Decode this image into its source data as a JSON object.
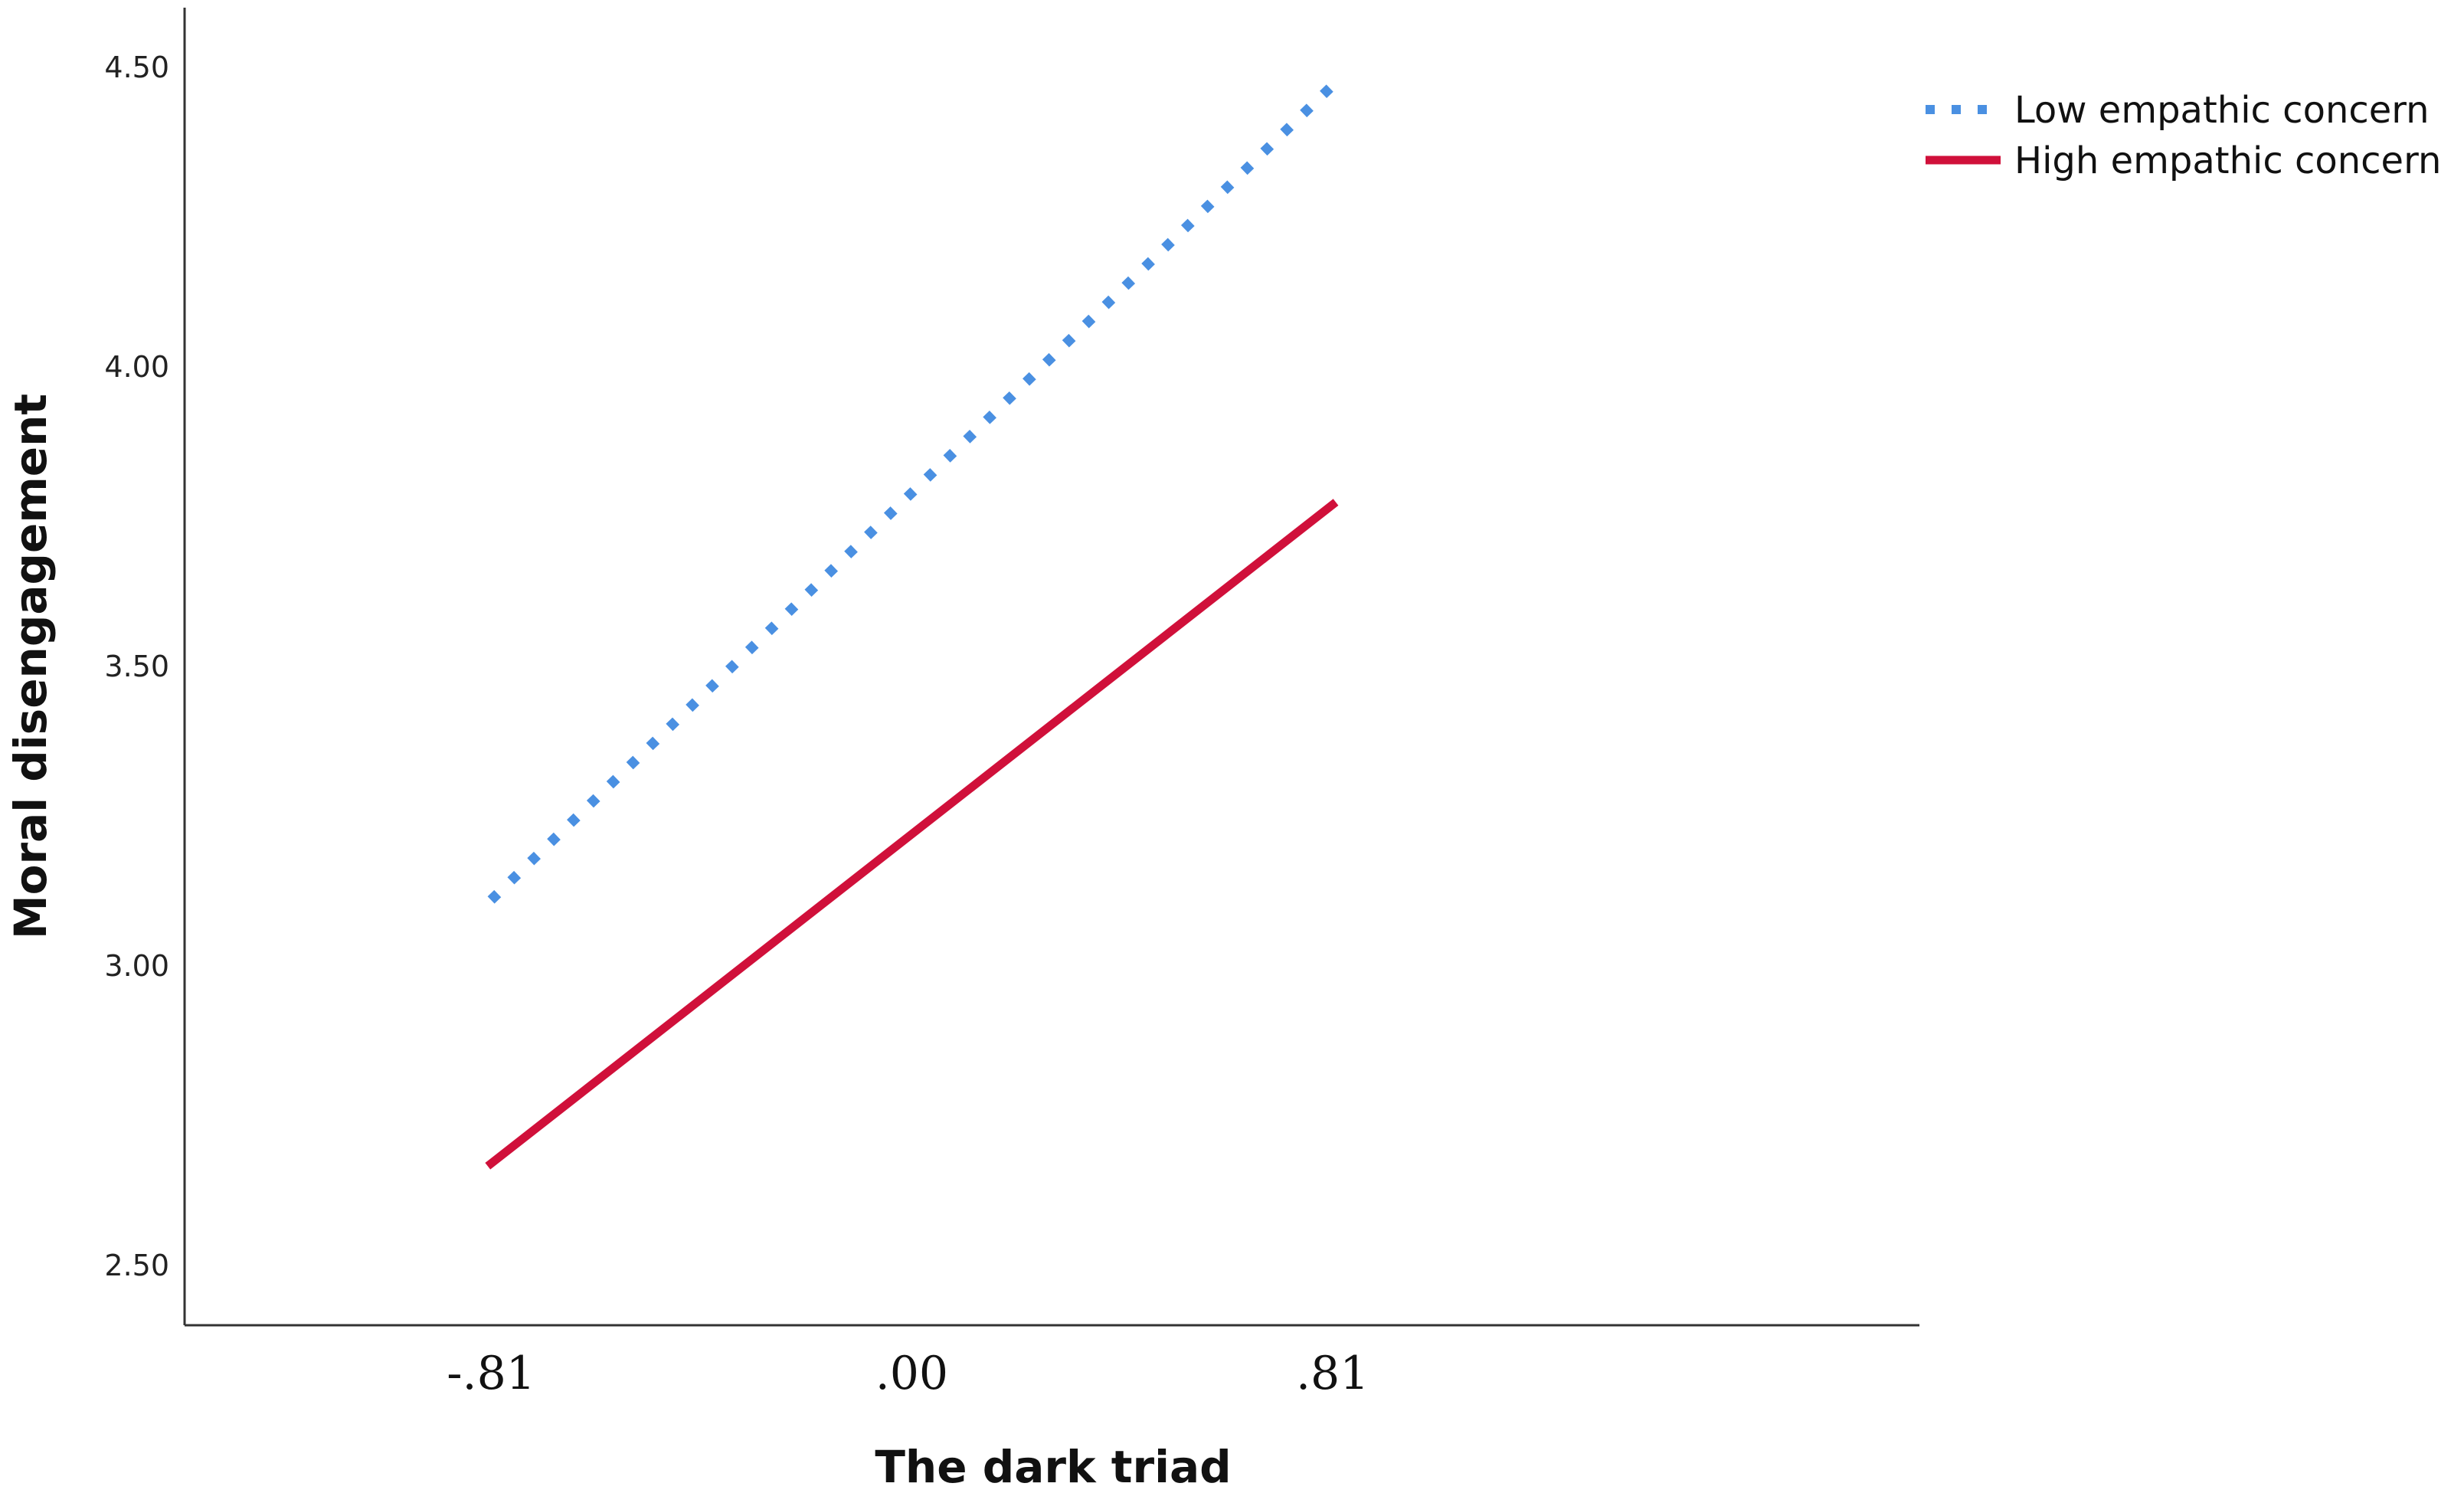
{
  "chart_data": {
    "type": "line",
    "title": "",
    "xlabel": "The dark triad",
    "ylabel": "Moral disengagement",
    "categories": [
      "-.81",
      ".00",
      ".81"
    ],
    "x": [
      -0.81,
      0.0,
      0.81
    ],
    "xlim": [
      -1.4,
      1.94
    ],
    "ylim": [
      2.4,
      4.6
    ],
    "yticks": [
      2.5,
      3.0,
      3.5,
      4.0,
      4.5
    ],
    "ytick_labels": [
      "2.50",
      "3.00",
      "3.50",
      "4.00",
      "4.50"
    ],
    "grid": false,
    "legend_position": "top-right",
    "series": [
      {
        "name": "Low empathic concern",
        "x": [
          -0.81,
          0.81
        ],
        "values": [
          3.11,
          4.47
        ],
        "color": "#4a90e2",
        "style": "dotted"
      },
      {
        "name": "High empathic concern",
        "x": [
          -0.81,
          0.81
        ],
        "values": [
          2.67,
          3.77
        ],
        "color": "#d0103a",
        "style": "solid"
      }
    ]
  }
}
